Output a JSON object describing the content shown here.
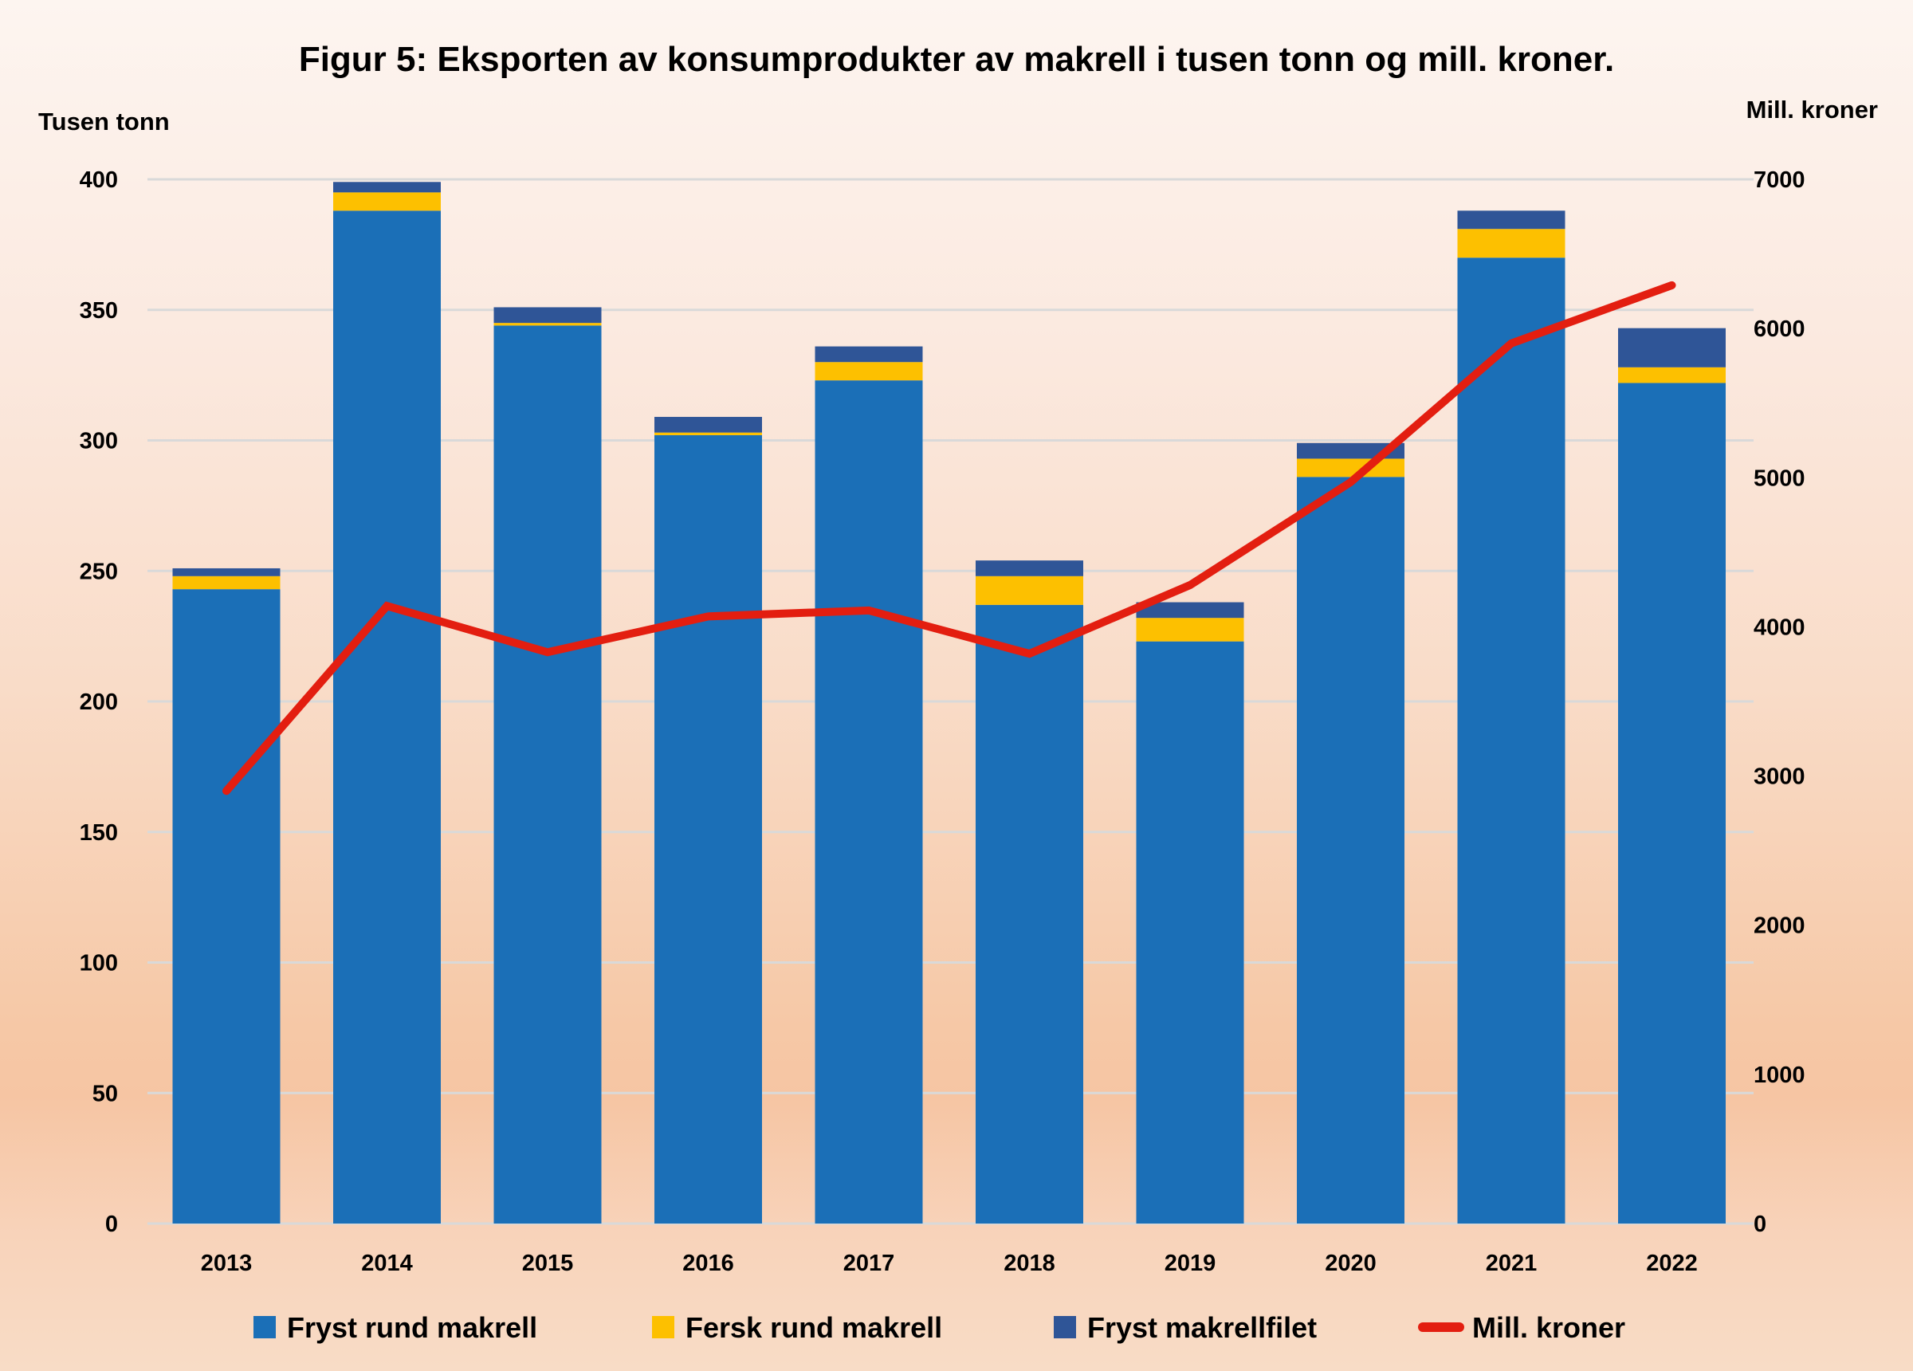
{
  "chart_data": {
    "type": "bar",
    "subtype": "stacked-bar-with-line",
    "title": "Figur 5: Eksporten av konsumprodukter av makrell i tusen tonn og mill. kroner.",
    "ylabel_left": "Tusen tonn",
    "ylabel_right": "Mill. kroner",
    "xlabel": "",
    "ylim_left": [
      0,
      400
    ],
    "ylim_right": [
      0,
      7000
    ],
    "yticks_left": [
      0,
      50,
      100,
      150,
      200,
      250,
      300,
      350,
      400
    ],
    "yticks_right": [
      0,
      1000,
      2000,
      3000,
      4000,
      5000,
      6000,
      7000
    ],
    "grid": true,
    "legend_position": "bottom",
    "categories": [
      "2013",
      "2014",
      "2015",
      "2016",
      "2017",
      "2018",
      "2019",
      "2020",
      "2021",
      "2022"
    ],
    "series": [
      {
        "name": "Fryst rund makrell",
        "type": "bar",
        "axis": "left",
        "color": "#1b6fb7",
        "values": [
          243,
          388,
          344,
          302,
          323,
          237,
          223,
          286,
          370,
          322
        ]
      },
      {
        "name": "Fersk rund makrell",
        "type": "bar",
        "axis": "left",
        "color": "#fdc000",
        "values": [
          5,
          7,
          1,
          1,
          7,
          11,
          9,
          7,
          11,
          6
        ]
      },
      {
        "name": "Fryst makrellfilet",
        "type": "bar",
        "axis": "left",
        "color": "#2f5597",
        "values": [
          3,
          4,
          6,
          6,
          6,
          6,
          6,
          6,
          7,
          15
        ]
      },
      {
        "name": "Mill. kroner",
        "type": "line",
        "axis": "right",
        "color": "#e31e10",
        "values": [
          2900,
          4140,
          3830,
          4070,
          4110,
          3820,
          4280,
          4970,
          5900,
          6290
        ]
      }
    ]
  }
}
